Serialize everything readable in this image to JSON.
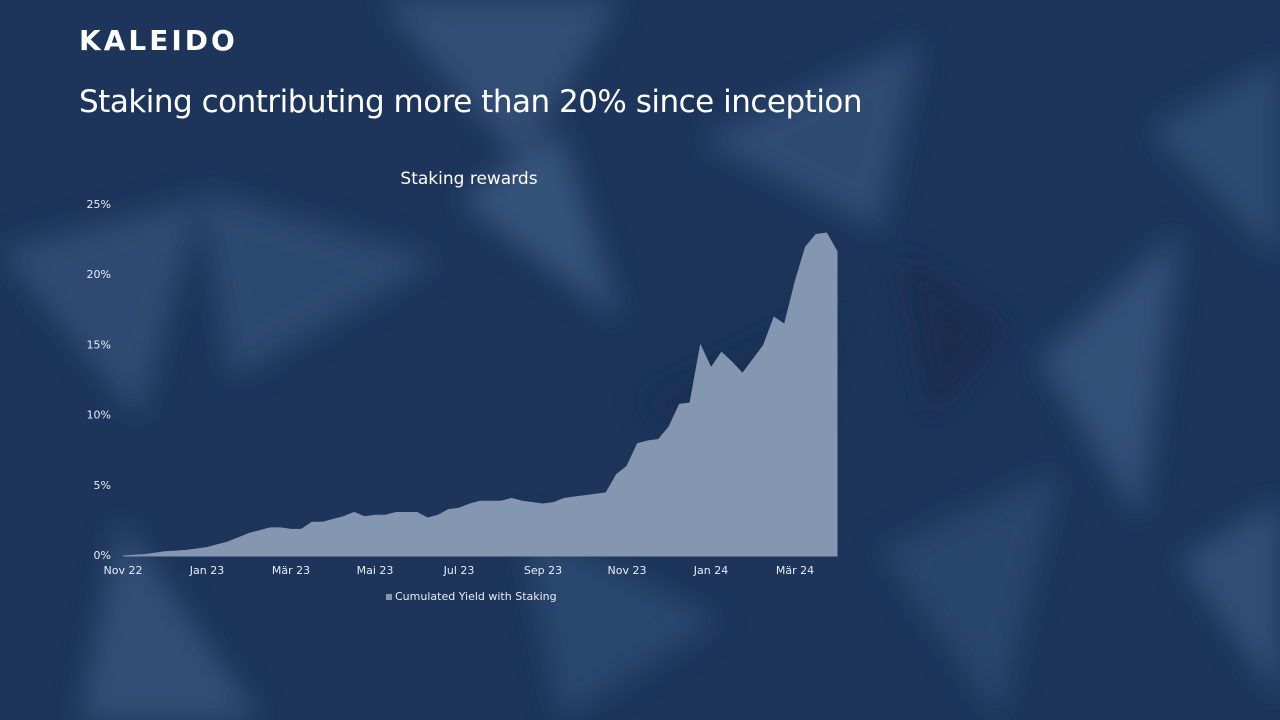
{
  "header": {
    "logo": "KALEIDO",
    "title": "Staking contributing more than 20% since inception"
  },
  "chart_data": {
    "type": "area",
    "title": "Staking rewards",
    "categories": [
      "Nov 22",
      null,
      null,
      null,
      null,
      null,
      null,
      null,
      "Jan 23",
      null,
      null,
      null,
      null,
      null,
      null,
      null,
      "Mär 23",
      null,
      null,
      null,
      null,
      null,
      null,
      null,
      "Mai 23",
      null,
      null,
      null,
      null,
      null,
      null,
      null,
      "Jul 23",
      null,
      null,
      null,
      null,
      null,
      null,
      null,
      "Sep 23",
      null,
      null,
      null,
      null,
      null,
      null,
      null,
      "Nov 23",
      null,
      null,
      null,
      null,
      null,
      null,
      null,
      "Jan 24",
      null,
      null,
      null,
      null,
      null,
      null,
      null,
      "Mär 24",
      null,
      null,
      null,
      null
    ],
    "series": [
      {
        "name": "Cumulated Yield with Staking",
        "color": "#8596b0",
        "values": [
          0,
          0.05,
          0.1,
          0.2,
          0.3,
          0.35,
          0.4,
          0.5,
          0.6,
          0.8,
          1.0,
          1.3,
          1.6,
          1.8,
          2.0,
          2.0,
          1.9,
          1.9,
          2.4,
          2.4,
          2.6,
          2.8,
          3.1,
          2.8,
          2.9,
          2.9,
          3.1,
          3.1,
          3.1,
          2.7,
          2.9,
          3.3,
          3.4,
          3.7,
          3.9,
          3.9,
          3.9,
          4.1,
          3.9,
          3.8,
          3.7,
          3.8,
          4.1,
          4.2,
          4.3,
          4.4,
          4.5,
          5.8,
          6.4,
          8.0,
          8.2,
          8.3,
          9.2,
          10.8,
          10.9,
          15.0,
          13.4,
          14.5,
          13.8,
          13.0,
          14.0,
          15.0,
          17.0,
          16.5,
          19.5,
          22.0,
          22.9,
          23.0,
          21.7
        ]
      }
    ],
    "ylim": [
      0,
      25
    ],
    "yticks": [
      {
        "value": 0,
        "label": "0%"
      },
      {
        "value": 5,
        "label": "5%"
      },
      {
        "value": 10,
        "label": "10%"
      },
      {
        "value": 15,
        "label": "15%"
      },
      {
        "value": 20,
        "label": "20%"
      },
      {
        "value": 25,
        "label": "25%"
      }
    ],
    "grid": false,
    "legend": "bottom"
  }
}
